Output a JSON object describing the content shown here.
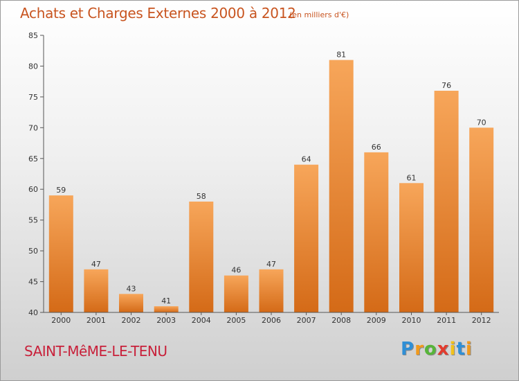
{
  "chart_data": {
    "type": "bar",
    "title": "Achats et Charges Externes 2000 à 2012",
    "unit": "(en milliers d'€)",
    "categories": [
      "2000",
      "2001",
      "2002",
      "2003",
      "2004",
      "2005",
      "2006",
      "2007",
      "2008",
      "2009",
      "2010",
      "2011",
      "2012"
    ],
    "values": [
      59,
      47,
      43,
      41,
      58,
      46,
      47,
      64,
      81,
      66,
      61,
      76,
      70
    ],
    "ylim": [
      40,
      85
    ],
    "yticks": [
      40,
      45,
      50,
      55,
      60,
      65,
      70,
      75,
      80,
      85
    ],
    "grid": false,
    "bar_color_top": "#f7a65a",
    "bar_color_bottom": "#d46a17"
  },
  "commune": "SAINT-MêME-LE-TENU",
  "logo": {
    "letters": [
      "P",
      "r",
      "o",
      "x",
      "i",
      "t",
      "i"
    ],
    "colors": [
      "#2f8fd6",
      "#f29a1c",
      "#57b53a",
      "#e23b2e",
      "#f2c21c",
      "#2f8fd6",
      "#f29a1c"
    ]
  }
}
